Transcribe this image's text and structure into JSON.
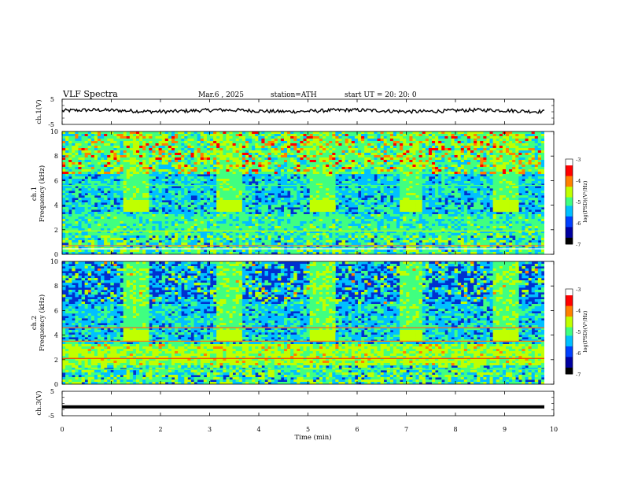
{
  "header": {
    "title": "VLF  Spectra",
    "date": "Mar.6  , 2025",
    "station": "station=ATH",
    "start": "start  UT  =    20: 20: 0"
  },
  "colors": {
    "spectrogram_scale": [
      "#000000",
      "#0000a0",
      "#0040ff",
      "#00c0ff",
      "#40ff80",
      "#c0ff00",
      "#ff8000",
      "#ff0000",
      "#ffffff"
    ],
    "trace": "#000000",
    "frame": "#000000"
  },
  "chart_data": [
    {
      "type": "line",
      "panel": "ch1-waveform",
      "ylabel": "ch.1(V)",
      "ylim": [
        -5,
        5
      ],
      "yticks": [
        "5",
        "-5"
      ],
      "xlim": [
        0,
        10
      ],
      "baseline": 0.4
    },
    {
      "type": "heatmap",
      "panel": "ch1-spectrogram",
      "ylabel": "ch.1\nFrequency  (kHz)",
      "ylim": [
        0,
        10
      ],
      "yticks": [
        "0",
        "2",
        "4",
        "6",
        "8",
        "10"
      ],
      "xlim": [
        0,
        9.8
      ],
      "colorbar": {
        "label": "log(PSD)(V²/Hz)",
        "range": [
          -7,
          -3
        ],
        "ticks": [
          "-3",
          "-4",
          "-5",
          "-6",
          "-7"
        ]
      },
      "bright_patch_times_min": [
        1.5,
        3.4,
        5.3,
        7.1,
        9.0
      ],
      "bright_patch_freq_khz": [
        3.6,
        4.4
      ]
    },
    {
      "type": "heatmap",
      "panel": "ch2-spectrogram",
      "ylabel": "ch.2\nFrequency  (kHz)",
      "ylim": [
        0,
        10
      ],
      "yticks": [
        "0",
        "2",
        "4",
        "6",
        "8",
        "10"
      ],
      "xlim": [
        0,
        9.8
      ],
      "colorbar": {
        "label": "log(PSD)(V²/Hz)",
        "range": [
          -7,
          -3
        ],
        "ticks": [
          "-3",
          "-4",
          "-5",
          "-6",
          "-7"
        ]
      },
      "bright_patch_times_min": [
        1.5,
        3.4,
        5.3,
        7.1,
        9.0
      ],
      "bright_patch_freq_khz": [
        3.6,
        4.4
      ]
    },
    {
      "type": "line",
      "panel": "ch3-waveform",
      "ylabel": "ch.3(V)",
      "ylim": [
        -5,
        5
      ],
      "yticks": [
        "5",
        "-5"
      ],
      "xlim": [
        0,
        10
      ],
      "baseline": -1.4
    }
  ],
  "xaxis": {
    "label": "Time  (min)",
    "ticks": [
      "0",
      "1",
      "2",
      "3",
      "4",
      "5",
      "6",
      "7",
      "8",
      "9",
      "10"
    ]
  }
}
